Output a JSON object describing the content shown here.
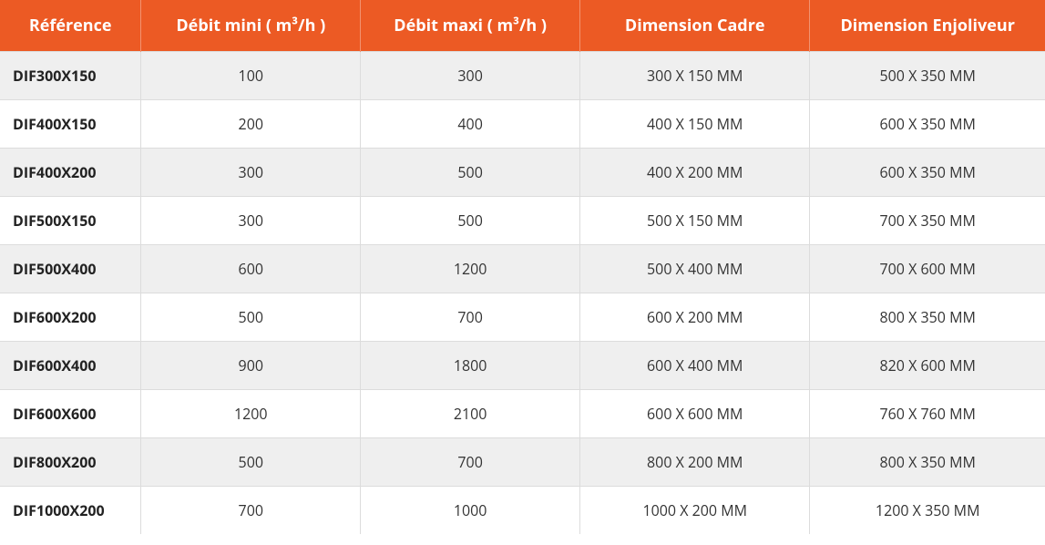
{
  "table": {
    "type": "table",
    "header_bg": "#ec5a24",
    "header_fg": "#ffffff",
    "row_odd_bg": "#efefef",
    "row_even_bg": "#ffffff",
    "border_color": "#dcdcdc",
    "text_color": "#2b2b2b",
    "header_fontsize": 18,
    "cell_fontsize": 16,
    "col_widths_pct": [
      13.5,
      21,
      21,
      22,
      22.5
    ],
    "columns": [
      "Référence",
      "Débit mini ( m³/h )",
      "Débit maxi ( m³/h )",
      "Dimension Cadre",
      "Dimension Enjoliveur"
    ],
    "rows": [
      [
        "DIF300X150",
        "100",
        "300",
        "300 X 150 MM",
        "500 X 350 MM"
      ],
      [
        "DIF400X150",
        "200",
        "400",
        "400 X 150 MM",
        "600 X 350 MM"
      ],
      [
        "DIF400X200",
        "300",
        "500",
        "400 X 200 MM",
        "600 X 350 MM"
      ],
      [
        "DIF500X150",
        "300",
        "500",
        "500 X 150 MM",
        "700 X 350 MM"
      ],
      [
        "DIF500X400",
        "600",
        "1200",
        "500 X 400 MM",
        "700 X 600 MM"
      ],
      [
        "DIF600X200",
        "500",
        "700",
        "600 X 200 MM",
        "800 X 350 MM"
      ],
      [
        "DIF600X400",
        "900",
        "1800",
        "600 X 400 MM",
        "820 X 600 MM"
      ],
      [
        "DIF600X600",
        "1200",
        "2100",
        "600 X 600 MM",
        "760 X 760 MM"
      ],
      [
        "DIF800X200",
        "500",
        "700",
        "800 X 200 MM",
        "800 X 350 MM"
      ],
      [
        "DIF1000X200",
        "700",
        "1000",
        "1000 X 200 MM",
        "1200 X 350 MM"
      ]
    ]
  }
}
